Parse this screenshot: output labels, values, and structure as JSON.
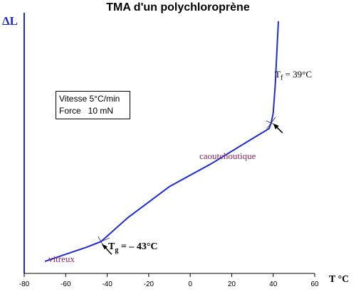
{
  "chart_data": {
    "type": "line",
    "title": "TMA d'un polychloroprène",
    "ylabel": "ΔL",
    "xlabel": "T °C",
    "xlim": [
      -80,
      60
    ],
    "x_ticks": [
      "-80",
      "-60",
      "-40",
      "-20",
      "0",
      "20",
      "40",
      "60"
    ],
    "grid": false,
    "series": [
      {
        "x": [
          -70,
          -60,
          -50,
          -43,
          -30,
          -10,
          10,
          30,
          38,
          39,
          40,
          41,
          42,
          42.5
        ],
        "y": [
          0.05,
          0.1,
          0.15,
          0.19,
          0.36,
          0.58,
          0.74,
          0.92,
          0.99,
          1.03,
          1.1,
          1.3,
          1.6,
          1.75
        ]
      }
    ],
    "annotations": {
      "box_line1": "Vitesse 5°C/min",
      "box_line2": "Force   10 mN",
      "glassy": "vitreux",
      "rubbery": "caoutchoutique",
      "tg": {
        "symbol": "T",
        "sub": "g",
        "text": " = – 43°C",
        "x": -43
      },
      "tf": {
        "symbol": "T",
        "sub": "f",
        "text": " = 39°C",
        "x": 39
      }
    },
    "colors": {
      "curve": "#1f2bd6",
      "axis": "#1f2bd6",
      "region_text": "#8c2a62"
    }
  }
}
